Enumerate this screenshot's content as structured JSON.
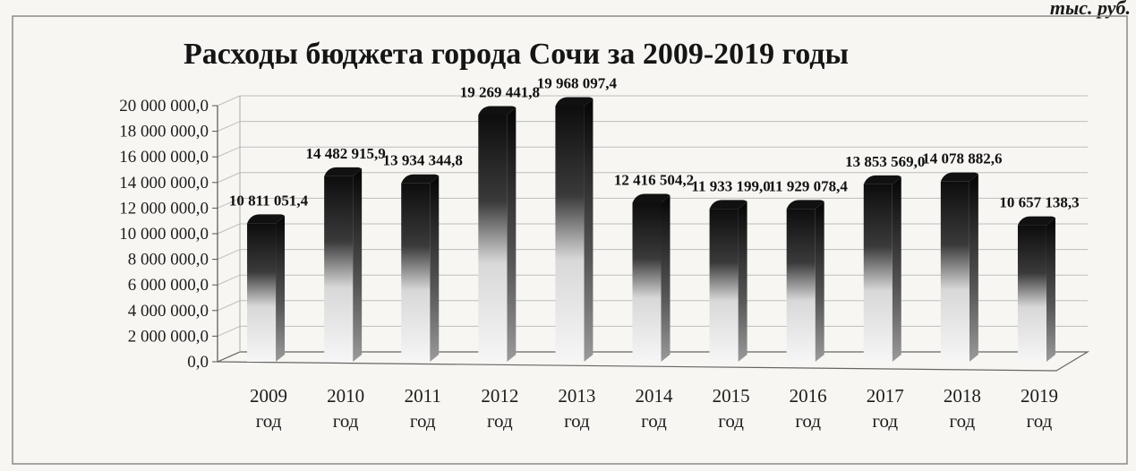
{
  "unit_note": "тыс. руб.",
  "chart_data": {
    "type": "bar",
    "title": "Расходы бюджета города Сочи за 2009-2019 годы",
    "categories": [
      [
        "2009",
        "год"
      ],
      [
        "2010",
        "год"
      ],
      [
        "2011",
        "год"
      ],
      [
        "2012",
        "год"
      ],
      [
        "2013",
        "год"
      ],
      [
        "2014",
        "год"
      ],
      [
        "2015",
        "год"
      ],
      [
        "2016",
        "год"
      ],
      [
        "2017",
        "год"
      ],
      [
        "2018",
        "год"
      ],
      [
        "2019",
        "год"
      ]
    ],
    "values": [
      10811051.4,
      14482915.9,
      13934344.8,
      19269441.8,
      19968097.4,
      12416504.2,
      11933199.0,
      11929078.4,
      13853569.0,
      14078882.6,
      10657138.3
    ],
    "data_labels": [
      "10 811 051,4",
      "14 482 915,9",
      "13 934 344,8",
      "19 269 441,8",
      "19 968 097,4",
      "12 416 504,2",
      "11 933 199,0",
      "11 929 078,4",
      "13 853 569,0",
      "14 078 882,6",
      "10 657 138,3"
    ],
    "y_ticks": [
      0,
      2000000,
      4000000,
      6000000,
      8000000,
      10000000,
      12000000,
      14000000,
      16000000,
      18000000,
      20000000
    ],
    "y_tick_labels": [
      "0,0",
      "2 000 000,0",
      "4 000 000,0",
      "6 000 000,0",
      "8 000 000,0",
      "10 000 000,0",
      "12 000 000,0",
      "14 000 000,0",
      "16 000 000,0",
      "18 000 000,0",
      "20 000 000,0"
    ],
    "ylim": [
      0,
      20000000
    ],
    "grid": true,
    "legend": "none",
    "style": "3d-column",
    "colors": {
      "bar_top": "#111111",
      "bar_bottom": "#f4f4f4",
      "gridline": "#bdbdbd",
      "frame": "#8a8a8a"
    }
  }
}
